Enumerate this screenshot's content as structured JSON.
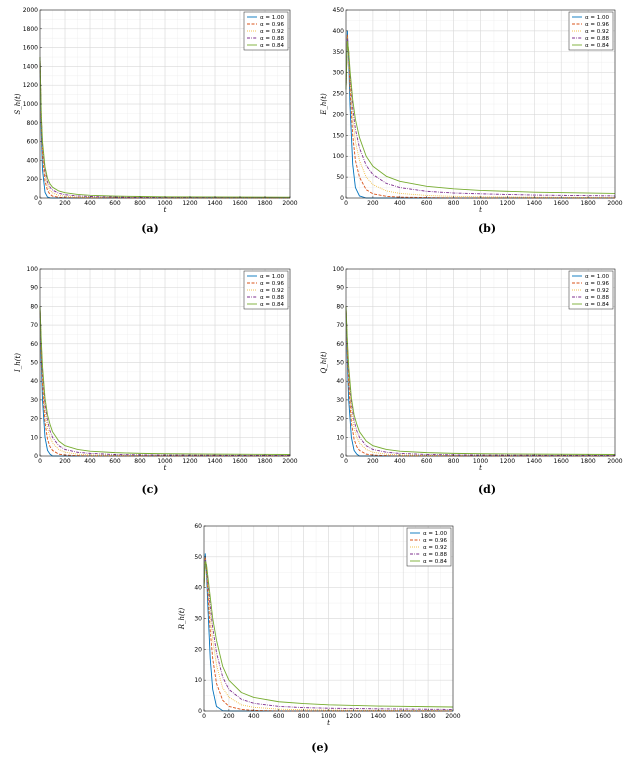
{
  "legend_labels": [
    "α = 1.00",
    "α = 0.96",
    "α = 0.92",
    "α = 0.88",
    "α = 0.84"
  ],
  "series_colors": [
    "#0072BD",
    "#D95319",
    "#EDB120",
    "#7E2F8E",
    "#77AC30"
  ],
  "series_dashes": [
    "solid",
    "dashed",
    "dotted",
    "dash-dot",
    "solid"
  ],
  "chart_data": [
    {
      "type": "line",
      "caption": "(a)",
      "xlabel": "t",
      "ylabel": "S_h(t)",
      "xlim": [
        0,
        2000
      ],
      "ylim": [
        0,
        2000
      ],
      "xticks": [
        0,
        200,
        400,
        600,
        800,
        1000,
        1200,
        1400,
        1600,
        1800,
        2000
      ],
      "yticks": [
        0,
        200,
        400,
        600,
        800,
        1000,
        1200,
        1400,
        1600,
        1800,
        2000
      ],
      "grid": true,
      "legend_position": "top-right",
      "x": [
        0,
        10,
        20,
        40,
        60,
        80,
        100,
        150,
        200,
        300,
        400,
        600,
        800,
        1000,
        1400,
        2000
      ],
      "series": [
        {
          "name": "α = 1.00",
          "values": [
            1500,
            700,
            300,
            60,
            10,
            2,
            0,
            0,
            0,
            0,
            0,
            0,
            0,
            0,
            0,
            0
          ]
        },
        {
          "name": "α = 0.96",
          "values": [
            1500,
            800,
            450,
            180,
            80,
            40,
            20,
            8,
            4,
            2,
            1,
            0,
            0,
            0,
            0,
            0
          ]
        },
        {
          "name": "α = 0.92",
          "values": [
            1500,
            850,
            520,
            250,
            130,
            80,
            55,
            28,
            18,
            10,
            7,
            4,
            3,
            2,
            2,
            1
          ]
        },
        {
          "name": "α = 0.88",
          "values": [
            1500,
            880,
            560,
            290,
            170,
            115,
            85,
            50,
            35,
            22,
            16,
            10,
            8,
            6,
            5,
            4
          ]
        },
        {
          "name": "α = 0.84",
          "values": [
            1500,
            900,
            600,
            330,
            210,
            150,
            115,
            75,
            56,
            38,
            29,
            20,
            16,
            13,
            11,
            9
          ]
        }
      ]
    },
    {
      "type": "line",
      "caption": "(b)",
      "xlabel": "t",
      "ylabel": "E_h(t)",
      "xlim": [
        0,
        2000
      ],
      "ylim": [
        0,
        450
      ],
      "xticks": [
        0,
        200,
        400,
        600,
        800,
        1000,
        1200,
        1400,
        1600,
        1800,
        2000
      ],
      "yticks": [
        0,
        50,
        100,
        150,
        200,
        250,
        300,
        350,
        400,
        450
      ],
      "grid": true,
      "legend_position": "top-right",
      "x": [
        0,
        10,
        20,
        30,
        50,
        70,
        100,
        150,
        200,
        300,
        400,
        600,
        800,
        1000,
        1400,
        2000
      ],
      "series": [
        {
          "name": "α = 1.00",
          "values": [
            260,
            400,
            330,
            220,
            80,
            25,
            5,
            0,
            0,
            0,
            0,
            0,
            0,
            0,
            0,
            0
          ]
        },
        {
          "name": "α = 0.96",
          "values": [
            260,
            390,
            340,
            260,
            150,
            90,
            50,
            20,
            10,
            4,
            2,
            1,
            0,
            0,
            0,
            0
          ]
        },
        {
          "name": "α = 0.92",
          "values": [
            260,
            385,
            345,
            280,
            190,
            135,
            90,
            50,
            32,
            17,
            11,
            6,
            4,
            3,
            2,
            1
          ]
        },
        {
          "name": "α = 0.88",
          "values": [
            260,
            380,
            350,
            295,
            215,
            165,
            120,
            78,
            56,
            35,
            25,
            16,
            12,
            10,
            7,
            5
          ]
        },
        {
          "name": "α = 0.84",
          "values": [
            260,
            375,
            352,
            305,
            235,
            188,
            145,
            100,
            76,
            52,
            40,
            28,
            22,
            18,
            14,
            11
          ]
        }
      ]
    },
    {
      "type": "line",
      "caption": "(c)",
      "xlabel": "t",
      "ylabel": "I_h(t)",
      "xlim": [
        0,
        2000
      ],
      "ylim": [
        0,
        100
      ],
      "xticks": [
        0,
        200,
        400,
        600,
        800,
        1000,
        1200,
        1400,
        1600,
        1800,
        2000
      ],
      "yticks": [
        0,
        10,
        20,
        30,
        40,
        50,
        60,
        70,
        80,
        90,
        100
      ],
      "grid": true,
      "legend_position": "top-right",
      "x": [
        0,
        10,
        20,
        40,
        60,
        80,
        100,
        150,
        200,
        300,
        400,
        600,
        800,
        1000,
        1400,
        2000
      ],
      "series": [
        {
          "name": "α = 1.00",
          "values": [
            80,
            50,
            30,
            10,
            3,
            1,
            0,
            0,
            0,
            0,
            0,
            0,
            0,
            0,
            0,
            0
          ]
        },
        {
          "name": "α = 0.96",
          "values": [
            80,
            55,
            38,
            18,
            9,
            5,
            3,
            1,
            0.5,
            0.2,
            0,
            0,
            0,
            0,
            0,
            0
          ]
        },
        {
          "name": "α = 0.92",
          "values": [
            80,
            58,
            42,
            24,
            15,
            10,
            7,
            3.5,
            2,
            1,
            0.6,
            0.3,
            0.2,
            0.1,
            0.1,
            0
          ]
        },
        {
          "name": "α = 0.88",
          "values": [
            80,
            60,
            45,
            28,
            19,
            13.5,
            10,
            5.5,
            3.5,
            2,
            1.4,
            0.8,
            0.6,
            0.5,
            0.4,
            0.3
          ]
        },
        {
          "name": "α = 0.84",
          "values": [
            80,
            62,
            48,
            31,
            22,
            17,
            13,
            8,
            5.5,
            3.5,
            2.6,
            1.8,
            1.4,
            1.2,
            1,
            0.8
          ]
        }
      ]
    },
    {
      "type": "line",
      "caption": "(d)",
      "xlabel": "t",
      "ylabel": "Q_h(t)",
      "xlim": [
        0,
        2000
      ],
      "ylim": [
        0,
        100
      ],
      "xticks": [
        0,
        200,
        400,
        600,
        800,
        1000,
        1200,
        1400,
        1600,
        1800,
        2000
      ],
      "yticks": [
        0,
        10,
        20,
        30,
        40,
        50,
        60,
        70,
        80,
        90,
        100
      ],
      "grid": true,
      "legend_position": "top-right",
      "x": [
        0,
        10,
        20,
        40,
        60,
        80,
        100,
        150,
        200,
        300,
        400,
        600,
        800,
        1000,
        1400,
        2000
      ],
      "series": [
        {
          "name": "α = 1.00",
          "values": [
            80,
            50,
            30,
            10,
            3,
            1,
            0,
            0,
            0,
            0,
            0,
            0,
            0,
            0,
            0,
            0
          ]
        },
        {
          "name": "α = 0.96",
          "values": [
            80,
            55,
            38,
            18,
            9,
            5,
            3,
            1,
            0.5,
            0.2,
            0,
            0,
            0,
            0,
            0,
            0
          ]
        },
        {
          "name": "α = 0.92",
          "values": [
            80,
            58,
            42,
            24,
            15,
            10,
            7,
            3.5,
            2,
            1,
            0.6,
            0.3,
            0.2,
            0.1,
            0.1,
            0
          ]
        },
        {
          "name": "α = 0.88",
          "values": [
            80,
            60,
            45,
            28,
            19,
            13.5,
            10,
            5.5,
            3.5,
            2,
            1.4,
            0.8,
            0.6,
            0.5,
            0.4,
            0.3
          ]
        },
        {
          "name": "α = 0.84",
          "values": [
            80,
            62,
            48,
            31,
            22,
            17,
            13,
            8,
            5.5,
            3.5,
            2.6,
            1.8,
            1.4,
            1.2,
            1,
            0.8
          ]
        }
      ]
    },
    {
      "type": "line",
      "caption": "(e)",
      "xlabel": "t",
      "ylabel": "R_h(t)",
      "xlim": [
        0,
        2000
      ],
      "ylim": [
        0,
        60
      ],
      "xticks": [
        0,
        200,
        400,
        600,
        800,
        1000,
        1200,
        1400,
        1600,
        1800,
        2000
      ],
      "yticks": [
        0,
        10,
        20,
        30,
        40,
        50,
        60
      ],
      "grid": true,
      "legend_position": "top-right",
      "x": [
        0,
        10,
        20,
        30,
        50,
        70,
        100,
        150,
        200,
        300,
        400,
        600,
        800,
        1000,
        1400,
        2000
      ],
      "series": [
        {
          "name": "α = 1.00",
          "values": [
            40,
            51,
            45,
            35,
            17,
            7,
            1.5,
            0.1,
            0,
            0,
            0,
            0,
            0,
            0,
            0,
            0
          ]
        },
        {
          "name": "α = 0.96",
          "values": [
            40,
            50,
            46,
            39,
            26,
            17,
            9,
            3.5,
            1.5,
            0.5,
            0.2,
            0,
            0,
            0,
            0,
            0
          ]
        },
        {
          "name": "α = 0.92",
          "values": [
            40,
            49.5,
            46.5,
            41,
            31,
            23,
            15,
            7.5,
            4.5,
            2,
            1.2,
            0.6,
            0.4,
            0.3,
            0.2,
            0.1
          ]
        },
        {
          "name": "α = 0.88",
          "values": [
            40,
            49,
            47,
            42.5,
            34,
            27,
            19,
            11,
            7,
            3.8,
            2.5,
            1.5,
            1.1,
            0.9,
            0.7,
            0.5
          ]
        },
        {
          "name": "α = 0.84",
          "values": [
            40,
            48.5,
            47.5,
            44,
            37,
            30,
            23,
            14.5,
            10,
            6,
            4.4,
            3,
            2.4,
            2,
            1.6,
            1.3
          ]
        }
      ]
    }
  ]
}
